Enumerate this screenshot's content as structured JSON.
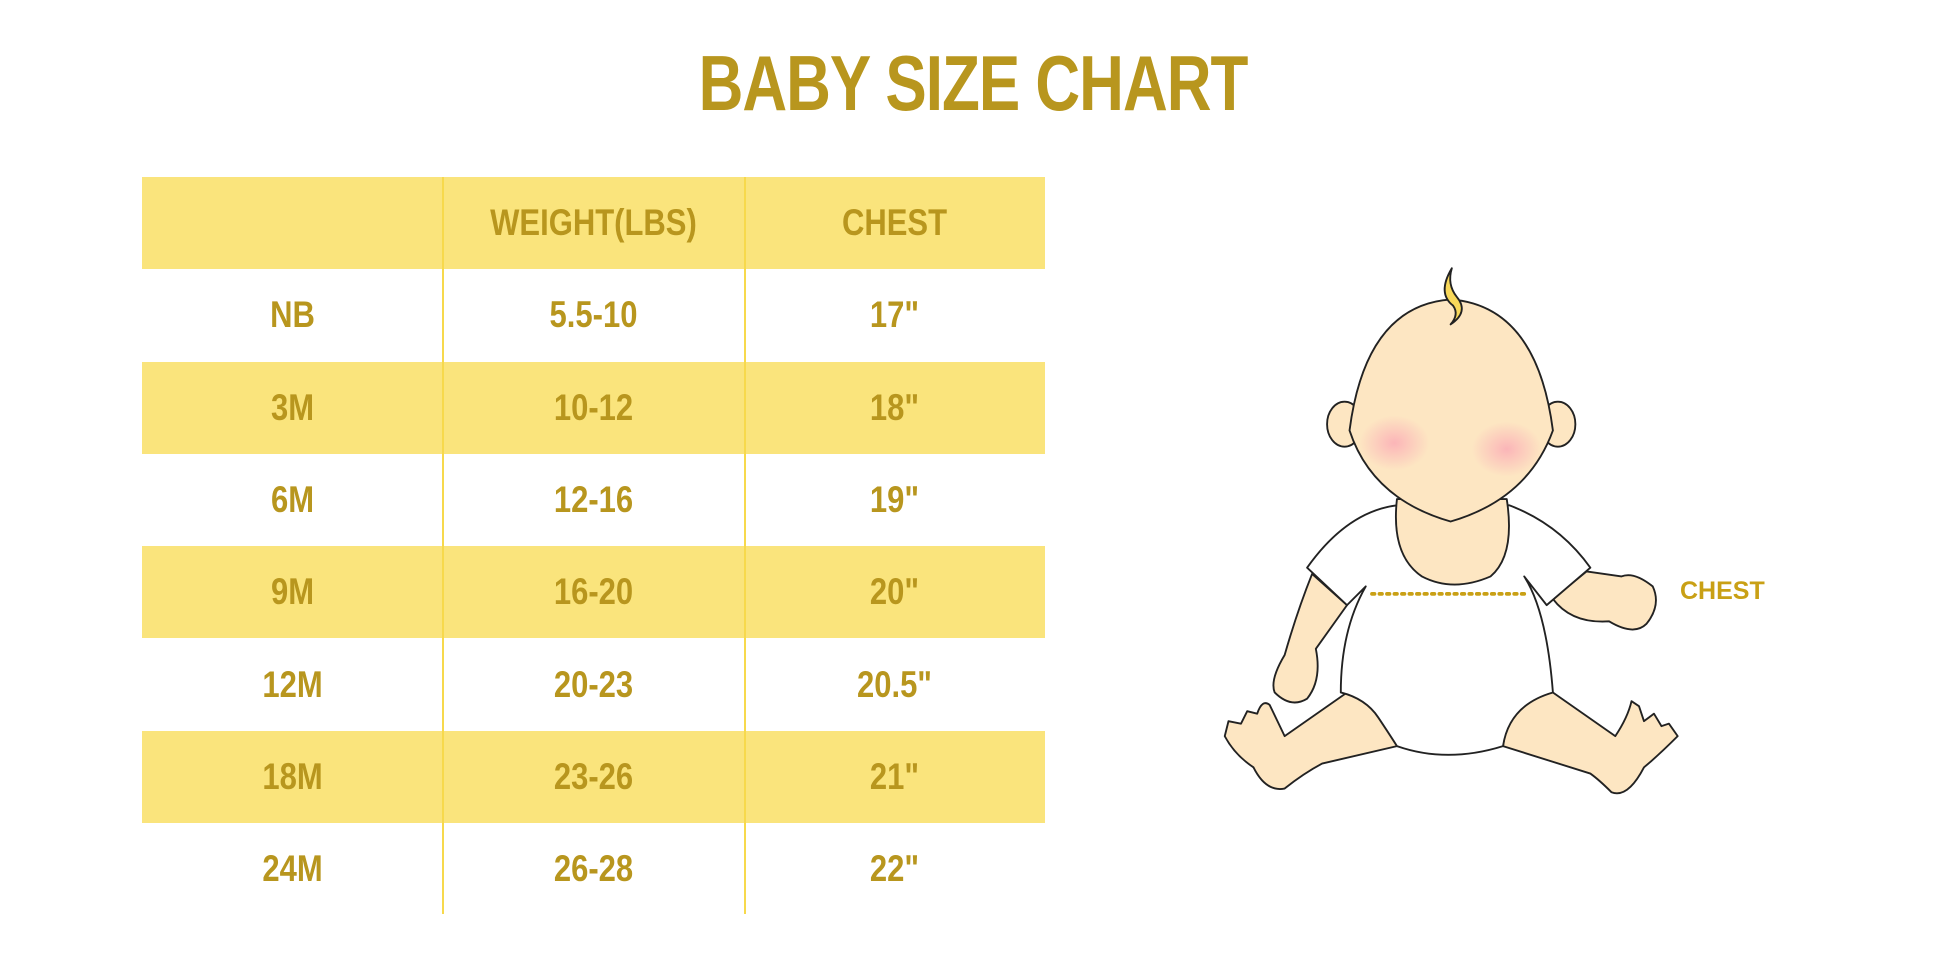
{
  "title": "BABY SIZE CHART",
  "colors": {
    "text": "#B8961E",
    "row_fill": "#FAE47C",
    "divider": "#F7D94C"
  },
  "table": {
    "headers": [
      "",
      "WEIGHT(LBS)",
      "CHEST"
    ],
    "rows": [
      [
        "NB",
        "5.5-10",
        "17\""
      ],
      [
        "3M",
        "10-12",
        "18\""
      ],
      [
        "6M",
        "12-16",
        "19\""
      ],
      [
        "9M",
        "16-20",
        "20\""
      ],
      [
        "12M",
        "20-23",
        "20.5\""
      ],
      [
        "18M",
        "23-26",
        "21\""
      ],
      [
        "24M",
        "26-28",
        "22\""
      ]
    ]
  },
  "illustration": {
    "chest_label": "CHEST"
  }
}
